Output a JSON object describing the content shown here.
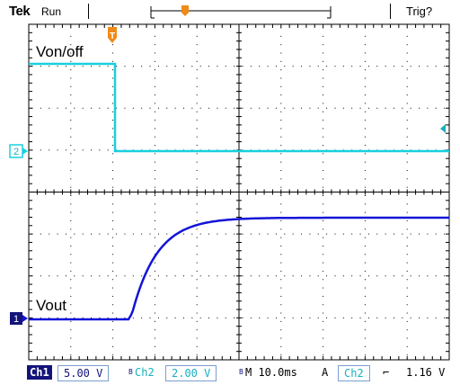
{
  "header": {
    "brand": "Tek",
    "status": "Run",
    "trigger_state": "Trig?"
  },
  "markers": {
    "trigger_position": "T",
    "ch2_ref": "2",
    "ch1_ref": "1"
  },
  "labels": {
    "ch2_signal": "Von/off",
    "ch1_signal": "Vout"
  },
  "footer": {
    "ch1_label": "Ch1",
    "ch1_scale": "5.00 V",
    "bw_mark": "B",
    "ch2_label": "Ch2",
    "ch2_scale": "2.00 V",
    "timebase": "M 10.0ms",
    "trigger_mode": "A",
    "trigger_source": "Ch2",
    "trigger_slope_symbol": "⌐",
    "trigger_level": "1.16 V"
  },
  "colors": {
    "ch1": "#1414d8",
    "ch2": "#18d0e0",
    "trigger_marker": "#f08a18",
    "grid": "#000000"
  }
}
